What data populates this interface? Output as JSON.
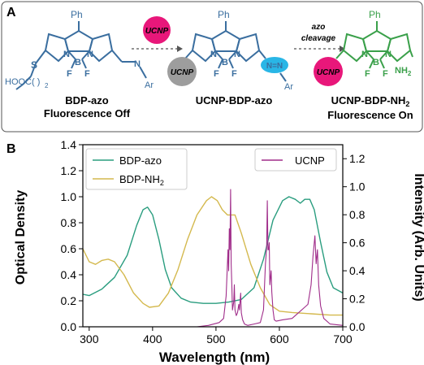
{
  "panel_a": {
    "label": "A",
    "phenyl": "Ph",
    "sulfur": "S",
    "boron": "B",
    "nitrogen": "N",
    "fluorine": "F",
    "linker": "HOOC",
    "linker_subscript": "2",
    "azo_n": "N",
    "aryl": "Ar",
    "amine": "NH",
    "amine_subscript": "2",
    "ucnp_badge": "UCNP",
    "arrow2_label_line1": "azo",
    "arrow2_label_line2": "cleavage",
    "compound1_name": "BDP-azo",
    "compound1_state": "Fluorescence Off",
    "compound2_name": "UCNP-BDP-azo",
    "compound3_name": "UCNP-BDP-NH",
    "compound3_subscript": "2",
    "compound3_state": "Fluorescence On",
    "colors": {
      "ucnp_magenta": "#e8177a",
      "ucnp_gray": "#9d9d9d",
      "azo_cyan": "#29b6e6",
      "bdp_blue": "#3a6e9f",
      "bdp_green": "#3aa04a"
    }
  },
  "panel_b": {
    "label": "B",
    "legend_left": [
      "BDP-azo",
      "BDP-NH"
    ],
    "legend_left_subscript": "2",
    "legend_right": "UCNP"
  },
  "chart_data": {
    "type": "line",
    "xlabel": "Wavelength (nm)",
    "ylabel_left": "Optical Density",
    "ylabel_right": "Intensity (Arb. Units)",
    "xlim": [
      290,
      700
    ],
    "ylim_left": [
      0,
      1.4
    ],
    "ylim_right": [
      0,
      1.3
    ],
    "xticks": [
      300,
      400,
      500,
      600,
      700
    ],
    "yticks_left": [
      0.0,
      0.2,
      0.4,
      0.6,
      0.8,
      1.0,
      1.2,
      1.4
    ],
    "yticks_right": [
      0.0,
      0.2,
      0.4,
      0.6,
      0.8,
      1.0,
      1.2
    ],
    "grid": false,
    "series": [
      {
        "name": "BDP-azo",
        "axis": "left",
        "color": "#2a9d7f",
        "points": [
          [
            290,
            0.25
          ],
          [
            300,
            0.24
          ],
          [
            320,
            0.29
          ],
          [
            340,
            0.38
          ],
          [
            360,
            0.55
          ],
          [
            375,
            0.78
          ],
          [
            385,
            0.9
          ],
          [
            392,
            0.92
          ],
          [
            400,
            0.86
          ],
          [
            410,
            0.67
          ],
          [
            420,
            0.44
          ],
          [
            430,
            0.3
          ],
          [
            445,
            0.22
          ],
          [
            460,
            0.19
          ],
          [
            480,
            0.18
          ],
          [
            500,
            0.18
          ],
          [
            520,
            0.19
          ],
          [
            540,
            0.21
          ],
          [
            560,
            0.3
          ],
          [
            575,
            0.52
          ],
          [
            590,
            0.82
          ],
          [
            605,
            0.97
          ],
          [
            615,
            1.0
          ],
          [
            625,
            0.98
          ],
          [
            633,
            0.95
          ],
          [
            640,
            0.98
          ],
          [
            648,
            0.98
          ],
          [
            655,
            0.9
          ],
          [
            665,
            0.65
          ],
          [
            675,
            0.42
          ],
          [
            685,
            0.3
          ],
          [
            700,
            0.26
          ]
        ]
      },
      {
        "name": "BDP-NH2",
        "axis": "left",
        "color": "#d4b94e",
        "points": [
          [
            290,
            0.6
          ],
          [
            300,
            0.5
          ],
          [
            310,
            0.48
          ],
          [
            320,
            0.51
          ],
          [
            330,
            0.52
          ],
          [
            340,
            0.5
          ],
          [
            355,
            0.4
          ],
          [
            370,
            0.26
          ],
          [
            385,
            0.18
          ],
          [
            395,
            0.15
          ],
          [
            410,
            0.16
          ],
          [
            425,
            0.26
          ],
          [
            440,
            0.44
          ],
          [
            455,
            0.67
          ],
          [
            470,
            0.86
          ],
          [
            485,
            0.97
          ],
          [
            493,
            1.0
          ],
          [
            502,
            0.97
          ],
          [
            510,
            0.9
          ],
          [
            518,
            0.86
          ],
          [
            530,
            0.86
          ],
          [
            540,
            0.72
          ],
          [
            555,
            0.48
          ],
          [
            570,
            0.3
          ],
          [
            585,
            0.17
          ],
          [
            600,
            0.12
          ],
          [
            620,
            0.11
          ],
          [
            650,
            0.1
          ],
          [
            680,
            0.09
          ],
          [
            700,
            0.09
          ]
        ]
      },
      {
        "name": "UCNP",
        "axis": "right",
        "color": "#a02d8a",
        "points": [
          [
            350,
            0.0
          ],
          [
            470,
            0.0
          ],
          [
            488,
            0.01
          ],
          [
            505,
            0.03
          ],
          [
            512,
            0.06
          ],
          [
            516,
            0.22
          ],
          [
            519,
            0.55
          ],
          [
            520,
            0.4
          ],
          [
            521,
            0.7
          ],
          [
            522,
            0.55
          ],
          [
            523,
            0.98
          ],
          [
            524,
            0.45
          ],
          [
            525,
            0.3
          ],
          [
            526,
            0.12
          ],
          [
            528,
            0.18
          ],
          [
            529,
            0.3
          ],
          [
            530,
            0.12
          ],
          [
            532,
            0.08
          ],
          [
            534,
            0.1
          ],
          [
            536,
            0.16
          ],
          [
            537,
            0.12
          ],
          [
            539,
            0.24
          ],
          [
            540,
            0.1
          ],
          [
            542,
            0.05
          ],
          [
            545,
            0.02
          ],
          [
            550,
            0.01
          ],
          [
            560,
            0.02
          ],
          [
            570,
            0.03
          ],
          [
            575,
            0.12
          ],
          [
            578,
            0.45
          ],
          [
            580,
            0.57
          ],
          [
            581,
            0.9
          ],
          [
            582,
            0.55
          ],
          [
            583,
            0.55
          ],
          [
            584,
            0.6
          ],
          [
            585,
            0.3
          ],
          [
            587,
            0.4
          ],
          [
            588,
            0.25
          ],
          [
            590,
            0.12
          ],
          [
            592,
            0.05
          ],
          [
            595,
            0.04
          ],
          [
            605,
            0.05
          ],
          [
            620,
            0.06
          ],
          [
            630,
            0.1
          ],
          [
            640,
            0.14
          ],
          [
            645,
            0.16
          ],
          [
            650,
            0.3
          ],
          [
            653,
            0.5
          ],
          [
            656,
            0.65
          ],
          [
            658,
            0.45
          ],
          [
            660,
            0.55
          ],
          [
            662,
            0.3
          ],
          [
            665,
            0.15
          ],
          [
            670,
            0.06
          ],
          [
            680,
            0.02
          ],
          [
            700,
            0.01
          ]
        ]
      }
    ]
  }
}
